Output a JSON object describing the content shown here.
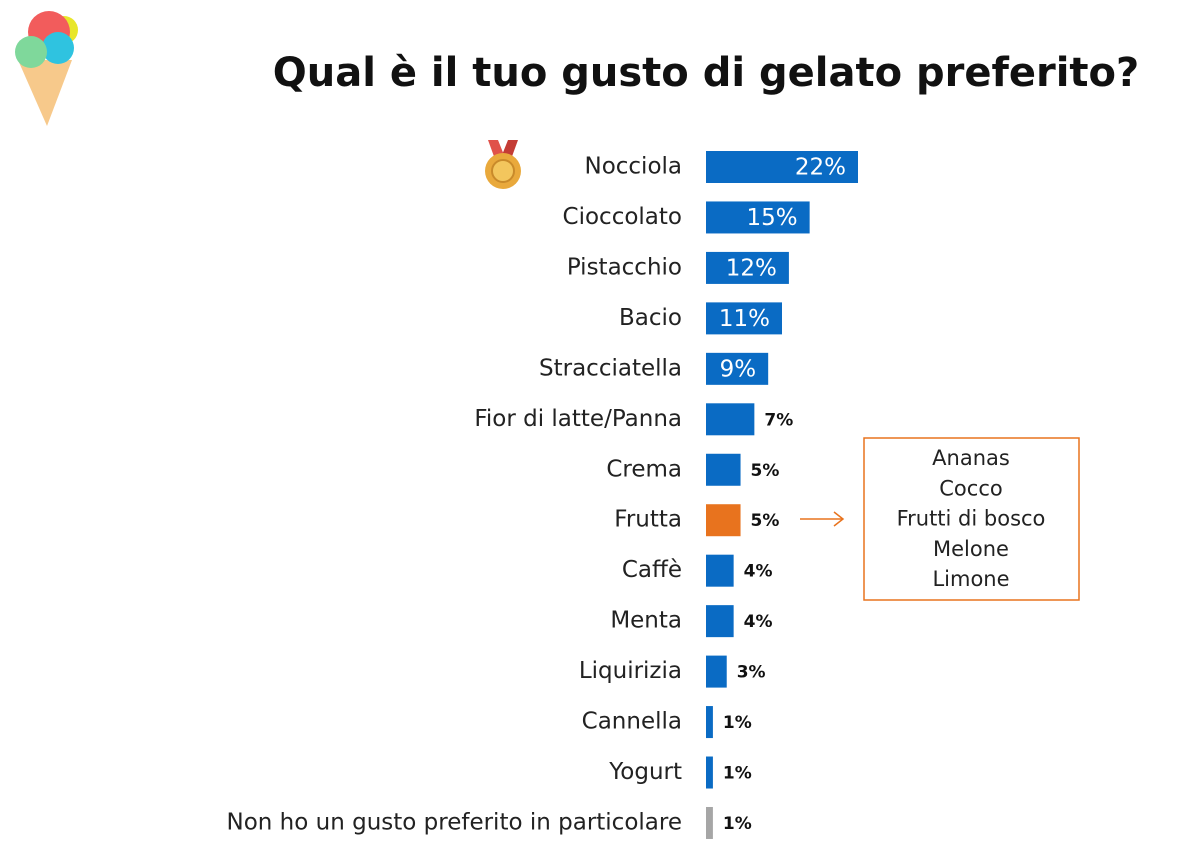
{
  "chart_data": {
    "type": "bar",
    "orientation": "horizontal",
    "title": "Qual è il tuo gusto di gelato preferito?",
    "categories": [
      "Nocciola",
      "Cioccolato",
      "Pistacchio",
      "Bacio",
      "Stracciatella",
      "Fior di latte/Panna",
      "Crema",
      "Frutta",
      "Caffè",
      "Menta",
      "Liquirizia",
      "Cannella",
      "Yogurt",
      "Non ho un gusto preferito in particolare"
    ],
    "values": [
      22,
      15,
      12,
      11,
      9,
      7,
      5,
      5,
      4,
      4,
      3,
      1,
      1,
      1
    ],
    "value_labels": [
      "22%",
      "15%",
      "12%",
      "11%",
      "9%",
      "7%",
      "5%",
      "5%",
      "4%",
      "4%",
      "3%",
      "1%",
      "1%",
      "1%"
    ],
    "colors": [
      "#0a6bc4",
      "#0a6bc4",
      "#0a6bc4",
      "#0a6bc4",
      "#0a6bc4",
      "#0a6bc4",
      "#0a6bc4",
      "#e8731e",
      "#0a6bc4",
      "#0a6bc4",
      "#0a6bc4",
      "#0a6bc4",
      "#0a6bc4",
      "#a6a6a6"
    ],
    "annotation": [
      "Ananas",
      "Cocco",
      "Frutti di bosco",
      "Melone",
      "Limone"
    ]
  }
}
